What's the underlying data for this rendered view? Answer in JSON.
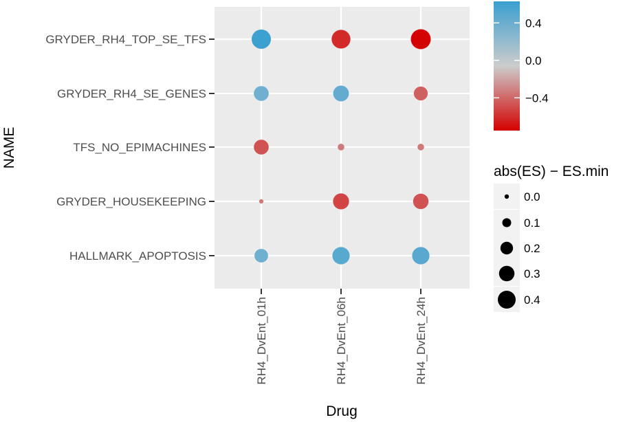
{
  "chart_data": {
    "type": "scatter",
    "xlabel": "Drug",
    "ylabel": "NAME",
    "x_categories": [
      "RH4_DvEnt_01h",
      "RH4_DvEnt_06h",
      "RH4_DvEnt_24h"
    ],
    "y_categories": [
      "GRYDER_RH4_TOP_SE_TFS",
      "GRYDER_RH4_SE_GENES",
      "TFS_NO_EPIMACHINES",
      "GRYDER_HOUSEKEEPING",
      "HALLMARK_APOPTOSIS"
    ],
    "points": [
      {
        "x": "RH4_DvEnt_01h",
        "y": "GRYDER_RH4_TOP_SE_TFS",
        "es": 0.62,
        "size": 0.42
      },
      {
        "x": "RH4_DvEnt_06h",
        "y": "GRYDER_RH4_TOP_SE_TFS",
        "es": -0.6,
        "size": 0.4
      },
      {
        "x": "RH4_DvEnt_24h",
        "y": "GRYDER_RH4_TOP_SE_TFS",
        "es": -0.74,
        "size": 0.45
      },
      {
        "x": "RH4_DvEnt_01h",
        "y": "GRYDER_RH4_SE_GENES",
        "es": 0.4,
        "size": 0.25
      },
      {
        "x": "RH4_DvEnt_06h",
        "y": "GRYDER_RH4_SE_GENES",
        "es": 0.45,
        "size": 0.28
      },
      {
        "x": "RH4_DvEnt_24h",
        "y": "GRYDER_RH4_SE_GENES",
        "es": -0.4,
        "size": 0.22
      },
      {
        "x": "RH4_DvEnt_01h",
        "y": "TFS_NO_EPIMACHINES",
        "es": -0.45,
        "size": 0.25
      },
      {
        "x": "RH4_DvEnt_06h",
        "y": "TFS_NO_EPIMACHINES",
        "es": -0.3,
        "size": 0.05
      },
      {
        "x": "RH4_DvEnt_24h",
        "y": "TFS_NO_EPIMACHINES",
        "es": -0.3,
        "size": 0.05
      },
      {
        "x": "RH4_DvEnt_01h",
        "y": "GRYDER_HOUSEKEEPING",
        "es": -0.3,
        "size": 0.02
      },
      {
        "x": "RH4_DvEnt_06h",
        "y": "GRYDER_HOUSEKEEPING",
        "es": -0.5,
        "size": 0.29
      },
      {
        "x": "RH4_DvEnt_24h",
        "y": "GRYDER_HOUSEKEEPING",
        "es": -0.45,
        "size": 0.27
      },
      {
        "x": "RH4_DvEnt_01h",
        "y": "HALLMARK_APOPTOSIS",
        "es": 0.4,
        "size": 0.21
      },
      {
        "x": "RH4_DvEnt_06h",
        "y": "HALLMARK_APOPTOSIS",
        "es": 0.5,
        "size": 0.34
      },
      {
        "x": "RH4_DvEnt_24h",
        "y": "HALLMARK_APOPTOSIS",
        "es": 0.5,
        "size": 0.34
      }
    ],
    "color_legend": {
      "ticks": [
        0.4,
        0.0,
        -0.4
      ],
      "tick_labels": [
        "0.4",
        "0.0",
        "−0.4"
      ],
      "range": [
        -0.75,
        0.63
      ],
      "colors": {
        "high": "#3a9fd0",
        "mid": "#cccccc",
        "low": "#d40000"
      }
    },
    "size_legend": {
      "title": "abs(ES) − ES.min",
      "values": [
        0.0,
        0.1,
        0.2,
        0.3,
        0.4
      ],
      "labels": [
        "0.0",
        "0.1",
        "0.2",
        "0.3",
        "0.4"
      ]
    },
    "grid": true,
    "panel_background": "#ebebeb"
  }
}
